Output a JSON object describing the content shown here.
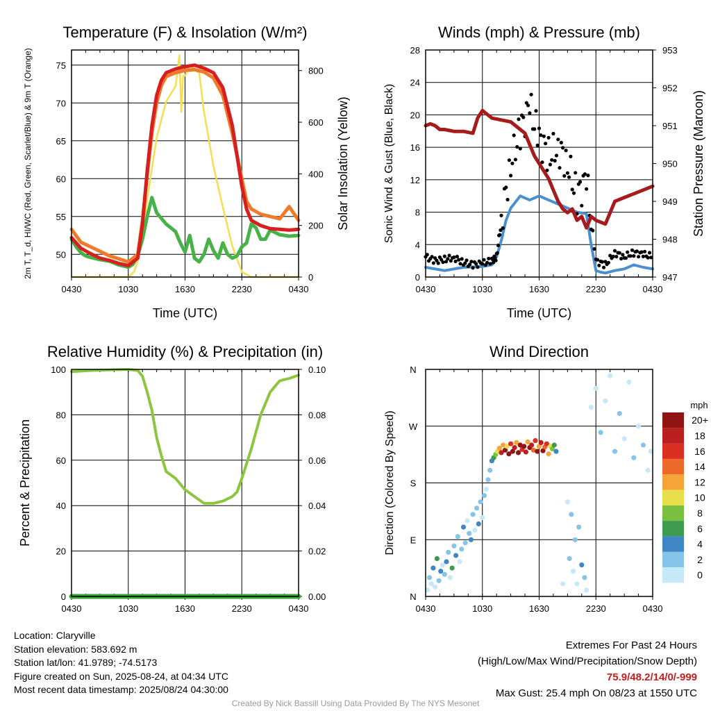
{
  "chart_data": [
    {
      "type": "line",
      "title": "Temperature (F) & Insolation (W/m²)",
      "xlabel": "Time (UTC)",
      "ylabel_left": "2m T, T_d, HI/WC (Red, Green, Scarlet/Blue) & 9m T (Orange)",
      "ylabel_right": "Solar Insolation (Yellow)",
      "x_ticks": [
        "0430",
        "1030",
        "1630",
        "2230",
        "0430"
      ],
      "y_ticks_left": [
        50,
        55,
        60,
        65,
        70,
        75
      ],
      "y_ticks_right": [
        0,
        200,
        400,
        600,
        800
      ],
      "ylim_left": [
        47,
        77
      ],
      "ylim_right": [
        0,
        880
      ],
      "x_hours": [
        0,
        24
      ],
      "grid": true,
      "series": [
        {
          "color": "#d62020",
          "x": [
            0,
            1,
            2,
            3,
            4,
            5,
            6,
            7,
            7.5,
            8,
            8.5,
            9,
            9.5,
            10,
            11,
            12,
            13,
            14,
            15,
            16,
            17,
            18,
            18.5,
            19,
            20,
            21,
            22,
            23,
            24
          ],
          "y": [
            52.2,
            50.8,
            50.1,
            49.5,
            49.2,
            48.8,
            48.5,
            49.5,
            54,
            61,
            67,
            71,
            73,
            74,
            74.5,
            74.8,
            75,
            74.6,
            74,
            72,
            67,
            59,
            56,
            54.5,
            53.8,
            53.4,
            53.3,
            53.2,
            53.3
          ]
        },
        {
          "color": "#f07a2a",
          "x": [
            0,
            1,
            2,
            3,
            4,
            5,
            6,
            7,
            7.5,
            8,
            8.5,
            9,
            9.5,
            10,
            11,
            12,
            13,
            14,
            15,
            16,
            17,
            18,
            18.5,
            19,
            20,
            21,
            22,
            23,
            24
          ],
          "y": [
            53.3,
            51.6,
            51,
            50.4,
            49.8,
            49.4,
            49,
            50,
            54.5,
            60.5,
            66,
            70,
            72.3,
            73.5,
            74,
            74.3,
            74.4,
            74.1,
            73.3,
            71,
            66,
            60,
            57,
            56,
            55.3,
            55,
            54.7,
            56.3,
            54.5
          ]
        },
        {
          "color": "#47b247",
          "x": [
            0,
            0.5,
            1,
            1.5,
            2,
            3,
            4,
            5,
            6,
            6.5,
            7,
            7.5,
            8,
            8.5,
            9,
            10,
            11,
            11.5,
            12,
            12.5,
            13,
            13.5,
            14,
            14.5,
            15,
            15.5,
            16,
            16.5,
            17,
            17.5,
            18,
            18.5,
            19,
            19.5,
            20,
            20.5,
            21,
            22,
            23,
            24
          ],
          "y": [
            52,
            51,
            50.2,
            49.8,
            49.6,
            49.3,
            49.1,
            48.6,
            48.3,
            48.7,
            49.8,
            52,
            55,
            57.5,
            55.5,
            54,
            53,
            51.5,
            50.3,
            52.5,
            49.5,
            49,
            50,
            52,
            50.5,
            49.5,
            51.5,
            50,
            49.5,
            49.8,
            51,
            51.5,
            54,
            53.5,
            52,
            52,
            53.2,
            52.6,
            52.4,
            52.5
          ]
        },
        {
          "color": "#f5df50",
          "x": [
            0,
            3,
            6,
            6.2,
            6.6,
            7,
            7.5,
            8,
            9,
            10,
            11,
            11.4,
            11.6,
            11.8,
            12,
            12.5,
            13,
            13.5,
            14,
            15,
            16,
            17,
            18,
            19,
            20,
            24
          ],
          "y": [
            0,
            0,
            0,
            5,
            20,
            60,
            150,
            300,
            540,
            680,
            740,
            860,
            640,
            780,
            780,
            820,
            810,
            790,
            640,
            430,
            270,
            120,
            20,
            0,
            0,
            0
          ]
        }
      ]
    },
    {
      "type": "line",
      "title": "Winds (mph) & Pressure (mb)",
      "xlabel": "Time (UTC)",
      "ylabel_left": "Sonic Wind & Gust (Blue, Black)",
      "ylabel_right": "Station Pressure (Maroon)",
      "x_ticks": [
        "0430",
        "1030",
        "1630",
        "2230",
        "0430"
      ],
      "y_ticks_left": [
        0,
        4,
        8,
        12,
        16,
        20,
        24,
        28
      ],
      "y_ticks_right": [
        947,
        948,
        949,
        950,
        951,
        952,
        953
      ],
      "ylim_left": [
        0,
        28
      ],
      "ylim_right": [
        947,
        953
      ],
      "x_hours": [
        0,
        24
      ],
      "grid": true,
      "series": [
        {
          "color": "#4a90d0",
          "x": [
            0,
            2,
            4,
            6,
            7,
            7.5,
            8,
            8.5,
            9,
            10,
            11,
            12,
            13,
            14,
            15,
            16,
            17,
            17.5,
            18,
            18.5,
            19,
            20,
            21,
            22,
            23,
            24
          ],
          "y": [
            1.2,
            0.8,
            1.2,
            1.3,
            1.5,
            2.5,
            4.5,
            7,
            8.5,
            10,
            9.5,
            10,
            9.5,
            9,
            8.5,
            8,
            7.8,
            4,
            0.8,
            0.6,
            0.5,
            0.8,
            1,
            1.5,
            1.2,
            1
          ]
        },
        {
          "color": "#000000",
          "x": [
            0,
            1,
            2,
            3,
            4,
            5,
            6,
            7,
            7.5,
            8,
            9,
            10,
            11,
            12,
            13,
            14,
            15,
            16,
            17,
            18,
            19,
            20,
            21,
            22,
            23,
            24
          ],
          "y": [
            2.5,
            2,
            2.2,
            2.4,
            1.8,
            1.5,
            1.7,
            2,
            2.5,
            7,
            14,
            18,
            21,
            17,
            15,
            16,
            14,
            10,
            12,
            2,
            1.5,
            3,
            2.5,
            3,
            2.8,
            2.5
          ]
        },
        {
          "color": "#a61c1c",
          "x": [
            0,
            0.5,
            1,
            1.5,
            2,
            3,
            4,
            5,
            5.5,
            6,
            7,
            8,
            9,
            10,
            10.5,
            11,
            11.5,
            12,
            12.5,
            13,
            13.5,
            14,
            14.5,
            15,
            15.5,
            16,
            16.5,
            17,
            17.5,
            18,
            19,
            20,
            21,
            22,
            23,
            24
          ],
          "y": [
            951.0,
            951.05,
            951.0,
            950.9,
            950.9,
            950.85,
            950.85,
            950.8,
            951.2,
            951.4,
            951.2,
            951.15,
            951.1,
            950.9,
            950.8,
            950.5,
            950.2,
            950.0,
            949.8,
            949.6,
            949.3,
            949.0,
            948.8,
            948.7,
            948.8,
            948.5,
            948.6,
            948.3,
            948.6,
            948.5,
            948.4,
            949.0,
            949.1,
            949.2,
            949.3,
            949.4
          ]
        }
      ]
    },
    {
      "type": "line",
      "title": "Relative Humidity (%) & Precipitation (in)",
      "ylabel_left": "Percent & Precipitation",
      "x_ticks": [
        "0430",
        "1030",
        "1630",
        "2230",
        "0430"
      ],
      "y_ticks_left": [
        0,
        20,
        40,
        60,
        80,
        100
      ],
      "y_ticks_right": [
        "0.00",
        "0.02",
        "0.04",
        "0.06",
        "0.08",
        "0.10"
      ],
      "ylim_left": [
        0,
        100
      ],
      "ylim_right": [
        0,
        0.1
      ],
      "x_hours": [
        0,
        24
      ],
      "grid": true,
      "series": [
        {
          "color": "#8cc63f",
          "x": [
            0,
            2,
            4,
            6,
            7,
            7.5,
            8,
            8.5,
            9,
            9.5,
            10,
            11,
            12,
            13,
            14,
            15,
            16,
            17,
            17.5,
            18,
            19,
            20,
            21,
            22,
            23,
            24
          ],
          "y": [
            99,
            99.5,
            99.8,
            100,
            99.5,
            97,
            90,
            82,
            70,
            62,
            55,
            52,
            47,
            44,
            41,
            41,
            42,
            44,
            46,
            52,
            65,
            80,
            90,
            95,
            96,
            97.5
          ]
        },
        {
          "color": "#3aa33a",
          "x": [
            0,
            24
          ],
          "y": [
            0,
            0
          ]
        }
      ]
    },
    {
      "type": "scatter",
      "title": "Wind Direction",
      "ylabel": "Direction (Colored By Speed)",
      "x_ticks": [
        "0430",
        "1030",
        "1630",
        "2230",
        "0430"
      ],
      "y_ticks": [
        "N",
        "E",
        "S",
        "W",
        "N"
      ],
      "ylim": [
        0,
        360
      ],
      "x_hours": [
        0,
        24
      ],
      "grid": true,
      "colorbar": {
        "title": "mph",
        "labels": [
          "0",
          "2",
          "4",
          "6",
          "8",
          "10",
          "12",
          "14",
          "16",
          "18",
          "20+"
        ],
        "colors": [
          "#c6e8f7",
          "#86c4ea",
          "#3f86c4",
          "#3d9a4e",
          "#7ac142",
          "#e6df4a",
          "#f6a43a",
          "#ee6a2a",
          "#db2f24",
          "#bc1f1f",
          "#901414"
        ]
      },
      "points": [
        [
          0.2,
          10,
          0
        ],
        [
          0.4,
          30,
          1
        ],
        [
          0.6,
          20,
          0
        ],
        [
          0.8,
          45,
          2
        ],
        [
          1.0,
          15,
          0
        ],
        [
          1.2,
          60,
          3
        ],
        [
          1.4,
          25,
          1
        ],
        [
          1.6,
          40,
          2
        ],
        [
          1.8,
          50,
          0
        ],
        [
          2.0,
          35,
          1
        ],
        [
          2.2,
          55,
          2
        ],
        [
          2.4,
          70,
          1
        ],
        [
          2.6,
          30,
          0
        ],
        [
          2.8,
          45,
          3
        ],
        [
          3.0,
          80,
          1
        ],
        [
          3.2,
          65,
          2
        ],
        [
          3.4,
          95,
          1
        ],
        [
          3.6,
          55,
          0
        ],
        [
          3.8,
          75,
          1
        ],
        [
          4.0,
          110,
          2
        ],
        [
          4.2,
          85,
          1
        ],
        [
          4.4,
          120,
          0
        ],
        [
          4.6,
          100,
          1
        ],
        [
          4.8,
          90,
          2
        ],
        [
          5.0,
          130,
          1
        ],
        [
          5.2,
          105,
          0
        ],
        [
          5.4,
          140,
          1
        ],
        [
          5.6,
          115,
          2
        ],
        [
          5.8,
          150,
          1
        ],
        [
          6.0,
          125,
          0
        ],
        [
          6.2,
          160,
          1
        ],
        [
          6.4,
          170,
          0
        ],
        [
          6.6,
          185,
          1
        ],
        [
          6.8,
          200,
          1
        ],
        [
          7.0,
          215,
          2
        ],
        [
          7.2,
          220,
          3
        ],
        [
          7.4,
          225,
          4
        ],
        [
          7.6,
          230,
          5
        ],
        [
          7.8,
          235,
          6
        ],
        [
          8.0,
          228,
          9
        ],
        [
          8.2,
          240,
          6
        ],
        [
          8.4,
          232,
          11
        ],
        [
          8.6,
          238,
          5
        ],
        [
          8.8,
          226,
          12
        ],
        [
          9.0,
          242,
          8
        ],
        [
          9.2,
          230,
          13
        ],
        [
          9.4,
          236,
          9
        ],
        [
          9.6,
          244,
          6
        ],
        [
          9.8,
          228,
          12
        ],
        [
          10.0,
          240,
          10
        ],
        [
          10.2,
          233,
          8
        ],
        [
          10.4,
          238,
          12
        ],
        [
          10.6,
          229,
          9
        ],
        [
          10.8,
          245,
          6
        ],
        [
          11.0,
          236,
          11
        ],
        [
          11.2,
          240,
          9
        ],
        [
          11.4,
          232,
          7
        ],
        [
          11.6,
          247,
          8
        ],
        [
          11.8,
          230,
          12
        ],
        [
          12.0,
          238,
          6
        ],
        [
          12.2,
          244,
          9
        ],
        [
          12.4,
          231,
          10
        ],
        [
          12.6,
          237,
          7
        ],
        [
          12.8,
          242,
          8
        ],
        [
          13.0,
          226,
          6
        ],
        [
          13.2,
          238,
          5
        ],
        [
          13.4,
          234,
          4
        ],
        [
          13.6,
          240,
          3
        ],
        [
          13.8,
          230,
          2
        ],
        [
          14.5,
          20,
          0
        ],
        [
          15.0,
          150,
          0
        ],
        [
          15.2,
          60,
          1
        ],
        [
          15.4,
          130,
          1
        ],
        [
          15.6,
          40,
          0
        ],
        [
          15.8,
          90,
          1
        ],
        [
          16.0,
          20,
          0
        ],
        [
          16.2,
          110,
          1
        ],
        [
          16.5,
          50,
          2
        ],
        [
          16.8,
          30,
          1
        ],
        [
          17.0,
          10,
          0
        ],
        [
          17.5,
          300,
          0
        ],
        [
          18.0,
          330,
          0
        ],
        [
          18.5,
          260,
          1
        ],
        [
          19.0,
          310,
          0
        ],
        [
          19.5,
          350,
          0
        ],
        [
          20.0,
          230,
          1
        ],
        [
          20.5,
          290,
          1
        ],
        [
          21.0,
          250,
          0
        ],
        [
          21.5,
          340,
          0
        ],
        [
          22.0,
          220,
          1
        ],
        [
          22.5,
          270,
          0
        ],
        [
          23.0,
          240,
          1
        ],
        [
          23.5,
          200,
          0
        ],
        [
          23.8,
          230,
          0
        ]
      ]
    }
  ],
  "info": {
    "location": "Location: Claryville",
    "elevation": "Station elevation: 583.692 m",
    "latlon": "Station lat/lon: 41.9789; -74.5173",
    "created": "Figure created on Sun, 2025-08-24, at 04:34 UTC",
    "recent": "Most recent data timestamp: 2025/08/24 04:30:00"
  },
  "extremes": {
    "title": "Extremes For Past 24 Hours",
    "subtitle": "(High/Low/Max Wind/Precipitation/Snow Depth)",
    "values": "75.9/48.2/14/0/-999",
    "gust": "Max Gust: 25.4 mph On 08/23 at 1550 UTC"
  },
  "credit": "Created By Nick Bassill Using Data Provided By The NYS Mesonet"
}
